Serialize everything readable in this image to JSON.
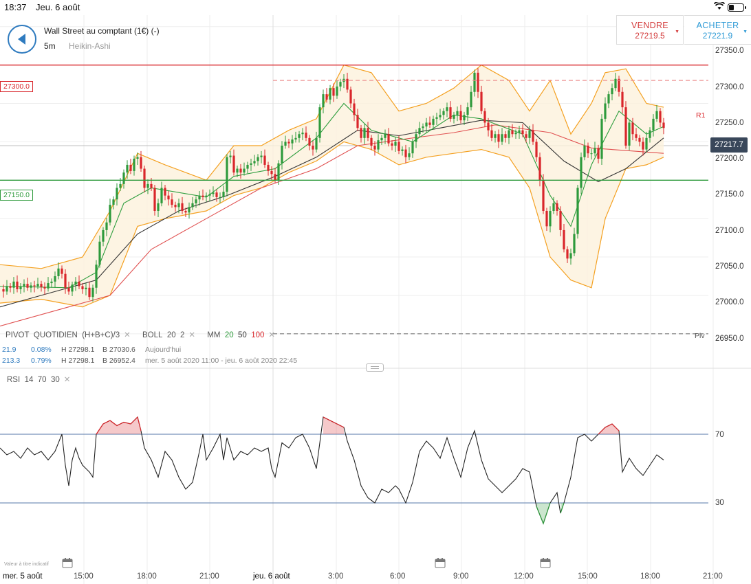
{
  "status_bar": {
    "time": "18:37",
    "date": "Jeu. 6 août"
  },
  "header": {
    "instrument": "Wall Street au comptant (1€) (-)",
    "timeframe": "5m",
    "chart_type": "Heikin-Ashi",
    "sell_label": "VENDRE",
    "sell_price": "27219.5",
    "buy_label": "ACHETER",
    "buy_price": "27221.9"
  },
  "price_axis": [
    "27350.0",
    "27300.0",
    "27250.0",
    "27200.0",
    "27150.0",
    "27100.0",
    "27050.0",
    "27000.0",
    "26950.0"
  ],
  "current_price": "27217.7",
  "levels": {
    "resistance_tag": "27300.0",
    "support_tag": "27150.0",
    "r1_label": "R1",
    "piv_label": "Piv"
  },
  "indicators": {
    "pivot": {
      "name": "PIVOT",
      "period": "QUOTIDIEN",
      "formula": "(H+B+C)/3"
    },
    "boll": {
      "name": "BOLL",
      "p1": "20",
      "p2": "2"
    },
    "mm": {
      "name": "MM",
      "v1": "20",
      "v2": "50",
      "v3": "100"
    }
  },
  "stats": {
    "row1": {
      "change": "21.9",
      "pct": "0.08%",
      "high": "H 27298.1",
      "low": "B 27030.6",
      "period": "Aujourd'hui"
    },
    "row2": {
      "change": "213.3",
      "pct": "0.79%",
      "high": "H 27298.1",
      "low": "B 26952.4",
      "period": "mer. 5 août 2020 11:00 - jeu. 6 août 2020 22:45"
    }
  },
  "rsi": {
    "name": "RSI",
    "period": "14",
    "upper": "70",
    "lower": "30",
    "upper_label": "70",
    "lower_label": "30"
  },
  "disclaimer": "Valeur à titre indicatif",
  "time_axis": [
    "mer. 5 août",
    "15:00",
    "18:00",
    "21:00",
    "jeu. 6 août",
    "3:00",
    "6:00",
    "9:00",
    "12:00",
    "15:00",
    "18:00",
    "21:00"
  ],
  "colors": {
    "up": "#2e9a3c",
    "down": "#d9262b",
    "bollinger": "#f4a020",
    "ma20": "#2f9e3f",
    "ma50": "#333333",
    "ma100": "#e05050",
    "resistance": "#d9262b",
    "support": "#2e9a3c",
    "rsi_line": "#222222",
    "rsi_bands": "#5577aa"
  },
  "chart_data": {
    "type": "line",
    "ylim": [
      26940,
      27365
    ],
    "levels": {
      "resistance": 27300,
      "support": 27150,
      "r1": 27280,
      "pivot": 26950
    },
    "close_series": [
      [
        0,
        27008
      ],
      [
        5,
        27005
      ],
      [
        10,
        27012
      ],
      [
        15,
        27010
      ],
      [
        20,
        27018
      ],
      [
        25,
        27008
      ],
      [
        30,
        27012
      ],
      [
        35,
        27015
      ],
      [
        40,
        27010
      ],
      [
        45,
        27013
      ],
      [
        50,
        27012
      ],
      [
        55,
        27015
      ],
      [
        60,
        27011
      ],
      [
        65,
        27009
      ],
      [
        70,
        27016
      ],
      [
        75,
        27018
      ],
      [
        80,
        27025
      ],
      [
        85,
        27035
      ],
      [
        90,
        27028
      ],
      [
        95,
        27010
      ],
      [
        100,
        27005
      ],
      [
        105,
        27014
      ],
      [
        110,
        27018
      ],
      [
        115,
        27012
      ],
      [
        120,
        27008
      ],
      [
        125,
        27010
      ],
      [
        130,
        26998
      ],
      [
        135,
        27010
      ],
      [
        140,
        27040
      ],
      [
        145,
        27070
      ],
      [
        150,
        27085
      ],
      [
        155,
        27095
      ],
      [
        160,
        27118
      ],
      [
        165,
        27125
      ],
      [
        170,
        27140
      ],
      [
        175,
        27145
      ],
      [
        180,
        27160
      ],
      [
        185,
        27170
      ],
      [
        190,
        27162
      ],
      [
        195,
        27178
      ],
      [
        200,
        27180
      ],
      [
        205,
        27165
      ],
      [
        210,
        27140
      ],
      [
        215,
        27145
      ],
      [
        220,
        27140
      ],
      [
        225,
        27110
      ],
      [
        230,
        27120
      ],
      [
        235,
        27140
      ],
      [
        240,
        27130
      ],
      [
        245,
        27125
      ],
      [
        250,
        27118
      ],
      [
        255,
        27115
      ],
      [
        260,
        27120
      ],
      [
        265,
        27110
      ],
      [
        270,
        27108
      ],
      [
        275,
        27115
      ],
      [
        280,
        27120
      ],
      [
        285,
        27125
      ],
      [
        290,
        27130
      ],
      [
        295,
        27128
      ],
      [
        300,
        27130
      ],
      [
        305,
        27132
      ],
      [
        310,
        27134
      ],
      [
        315,
        27128
      ],
      [
        320,
        27128
      ],
      [
        325,
        27135
      ],
      [
        330,
        27180
      ],
      [
        335,
        27182
      ],
      [
        340,
        27160
      ],
      [
        345,
        27165
      ],
      [
        350,
        27160
      ],
      [
        355,
        27165
      ],
      [
        360,
        27170
      ],
      [
        365,
        27172
      ],
      [
        370,
        27175
      ],
      [
        375,
        27180
      ],
      [
        380,
        27182
      ],
      [
        385,
        27170
      ],
      [
        390,
        27162
      ],
      [
        395,
        27158
      ],
      [
        400,
        27150
      ],
      [
        405,
        27172
      ],
      [
        410,
        27195
      ],
      [
        415,
        27200
      ],
      [
        420,
        27198
      ],
      [
        425,
        27203
      ],
      [
        430,
        27205
      ],
      [
        435,
        27210
      ],
      [
        440,
        27212
      ],
      [
        445,
        27205
      ],
      [
        450,
        27195
      ],
      [
        455,
        27190
      ],
      [
        460,
        27205
      ],
      [
        465,
        27245
      ],
      [
        470,
        27262
      ],
      [
        475,
        27255
      ],
      [
        480,
        27270
      ],
      [
        485,
        27260
      ],
      [
        490,
        27272
      ],
      [
        495,
        27278
      ],
      [
        500,
        27282
      ],
      [
        505,
        27268
      ],
      [
        510,
        27250
      ],
      [
        515,
        27235
      ],
      [
        520,
        27218
      ],
      [
        525,
        27205
      ],
      [
        530,
        27218
      ],
      [
        535,
        27205
      ],
      [
        540,
        27195
      ],
      [
        545,
        27190
      ],
      [
        550,
        27202
      ],
      [
        555,
        27205
      ],
      [
        560,
        27210
      ],
      [
        565,
        27198
      ],
      [
        570,
        27195
      ],
      [
        575,
        27200
      ],
      [
        580,
        27188
      ],
      [
        585,
        27190
      ],
      [
        590,
        27180
      ],
      [
        595,
        27185
      ],
      [
        600,
        27200
      ],
      [
        605,
        27210
      ],
      [
        610,
        27218
      ],
      [
        615,
        27220
      ],
      [
        620,
        27225
      ],
      [
        625,
        27222
      ],
      [
        630,
        27230
      ],
      [
        635,
        27232
      ],
      [
        640,
        27235
      ],
      [
        645,
        27240
      ],
      [
        650,
        27245
      ],
      [
        655,
        27230
      ],
      [
        660,
        27235
      ],
      [
        665,
        27240
      ],
      [
        670,
        27228
      ],
      [
        675,
        27235
      ],
      [
        680,
        27245
      ],
      [
        685,
        27265
      ],
      [
        690,
        27290
      ],
      [
        695,
        27265
      ],
      [
        700,
        27240
      ],
      [
        705,
        27225
      ],
      [
        710,
        27215
      ],
      [
        715,
        27205
      ],
      [
        720,
        27210
      ],
      [
        725,
        27200
      ],
      [
        730,
        27210
      ],
      [
        735,
        27205
      ],
      [
        740,
        27215
      ],
      [
        745,
        27210
      ],
      [
        750,
        27212
      ],
      [
        755,
        27215
      ],
      [
        760,
        27210
      ],
      [
        765,
        27205
      ],
      [
        770,
        27215
      ],
      [
        775,
        27200
      ],
      [
        780,
        27180
      ],
      [
        785,
        27150
      ],
      [
        790,
        27110
      ],
      [
        795,
        27090
      ],
      [
        800,
        27110
      ],
      [
        805,
        27120
      ],
      [
        810,
        27110
      ],
      [
        815,
        27085
      ],
      [
        820,
        27060
      ],
      [
        825,
        27048
      ],
      [
        830,
        27055
      ],
      [
        835,
        27080
      ],
      [
        840,
        27140
      ],
      [
        845,
        27180
      ],
      [
        850,
        27195
      ],
      [
        855,
        27185
      ],
      [
        860,
        27185
      ],
      [
        865,
        27192
      ],
      [
        870,
        27178
      ],
      [
        875,
        27230
      ],
      [
        880,
        27250
      ],
      [
        885,
        27262
      ],
      [
        890,
        27270
      ],
      [
        895,
        27282
      ],
      [
        900,
        27265
      ],
      [
        905,
        27245
      ],
      [
        910,
        27195
      ],
      [
        915,
        27225
      ],
      [
        920,
        27210
      ],
      [
        925,
        27205
      ],
      [
        930,
        27200
      ],
      [
        935,
        27190
      ],
      [
        940,
        27205
      ],
      [
        945,
        27215
      ],
      [
        950,
        27230
      ],
      [
        955,
        27240
      ],
      [
        960,
        27225
      ],
      [
        965,
        27218
      ]
    ],
    "rsi_ylim": [
      0,
      100
    ],
    "rsi_series": [
      [
        0,
        62
      ],
      [
        10,
        58
      ],
      [
        20,
        60
      ],
      [
        30,
        56
      ],
      [
        40,
        62
      ],
      [
        50,
        58
      ],
      [
        60,
        60
      ],
      [
        70,
        55
      ],
      [
        80,
        60
      ],
      [
        90,
        70
      ],
      [
        95,
        52
      ],
      [
        100,
        40
      ],
      [
        105,
        55
      ],
      [
        110,
        62
      ],
      [
        115,
        56
      ],
      [
        120,
        52
      ],
      [
        130,
        48
      ],
      [
        135,
        45
      ],
      [
        140,
        70
      ],
      [
        150,
        76
      ],
      [
        160,
        78
      ],
      [
        170,
        75
      ],
      [
        180,
        77
      ],
      [
        190,
        76
      ],
      [
        200,
        80
      ],
      [
        205,
        72
      ],
      [
        210,
        62
      ],
      [
        220,
        55
      ],
      [
        230,
        45
      ],
      [
        240,
        60
      ],
      [
        250,
        55
      ],
      [
        260,
        45
      ],
      [
        270,
        38
      ],
      [
        280,
        42
      ],
      [
        290,
        60
      ],
      [
        295,
        70
      ],
      [
        300,
        55
      ],
      [
        310,
        62
      ],
      [
        320,
        70
      ],
      [
        325,
        55
      ],
      [
        330,
        68
      ],
      [
        340,
        55
      ],
      [
        350,
        60
      ],
      [
        360,
        58
      ],
      [
        370,
        62
      ],
      [
        380,
        60
      ],
      [
        390,
        62
      ],
      [
        395,
        50
      ],
      [
        400,
        45
      ],
      [
        405,
        55
      ],
      [
        410,
        65
      ],
      [
        420,
        62
      ],
      [
        430,
        68
      ],
      [
        440,
        70
      ],
      [
        450,
        62
      ],
      [
        460,
        50
      ],
      [
        470,
        80
      ],
      [
        480,
        78
      ],
      [
        490,
        76
      ],
      [
        500,
        74
      ],
      [
        505,
        66
      ],
      [
        515,
        55
      ],
      [
        525,
        40
      ],
      [
        535,
        33
      ],
      [
        545,
        30
      ],
      [
        555,
        38
      ],
      [
        565,
        36
      ],
      [
        575,
        40
      ],
      [
        580,
        38
      ],
      [
        590,
        30
      ],
      [
        600,
        42
      ],
      [
        610,
        60
      ],
      [
        620,
        66
      ],
      [
        630,
        62
      ],
      [
        640,
        56
      ],
      [
        650,
        68
      ],
      [
        660,
        56
      ],
      [
        670,
        45
      ],
      [
        680,
        62
      ],
      [
        690,
        72
      ],
      [
        700,
        55
      ],
      [
        710,
        44
      ],
      [
        720,
        40
      ],
      [
        730,
        36
      ],
      [
        740,
        40
      ],
      [
        750,
        44
      ],
      [
        760,
        50
      ],
      [
        770,
        48
      ],
      [
        780,
        28
      ],
      [
        790,
        18
      ],
      [
        800,
        30
      ],
      [
        810,
        36
      ],
      [
        815,
        24
      ],
      [
        820,
        30
      ],
      [
        830,
        45
      ],
      [
        840,
        68
      ],
      [
        850,
        70
      ],
      [
        860,
        66
      ],
      [
        870,
        70
      ],
      [
        880,
        74
      ],
      [
        890,
        76
      ],
      [
        900,
        72
      ],
      [
        905,
        48
      ],
      [
        915,
        56
      ],
      [
        925,
        50
      ],
      [
        935,
        46
      ],
      [
        945,
        52
      ],
      [
        955,
        58
      ],
      [
        965,
        55
      ]
    ],
    "ma20": [
      [
        0,
        27012
      ],
      [
        100,
        27010
      ],
      [
        140,
        27030
      ],
      [
        180,
        27120
      ],
      [
        220,
        27140
      ],
      [
        300,
        27128
      ],
      [
        340,
        27155
      ],
      [
        400,
        27165
      ],
      [
        460,
        27205
      ],
      [
        500,
        27250
      ],
      [
        540,
        27215
      ],
      [
        600,
        27200
      ],
      [
        660,
        27235
      ],
      [
        700,
        27230
      ],
      [
        760,
        27210
      ],
      [
        800,
        27130
      ],
      [
        830,
        27090
      ],
      [
        860,
        27170
      ],
      [
        900,
        27240
      ],
      [
        940,
        27210
      ],
      [
        965,
        27220
      ]
    ],
    "ma50": [
      [
        0,
        26985
      ],
      [
        60,
        27000
      ],
      [
        140,
        27020
      ],
      [
        200,
        27080
      ],
      [
        260,
        27110
      ],
      [
        330,
        27130
      ],
      [
        400,
        27155
      ],
      [
        460,
        27180
      ],
      [
        520,
        27215
      ],
      [
        580,
        27208
      ],
      [
        640,
        27218
      ],
      [
        700,
        27228
      ],
      [
        760,
        27225
      ],
      [
        820,
        27175
      ],
      [
        870,
        27148
      ],
      [
        910,
        27165
      ],
      [
        965,
        27205
      ]
    ],
    "ma100": [
      [
        0,
        26960
      ],
      [
        100,
        26985
      ],
      [
        160,
        27000
      ],
      [
        220,
        27060
      ],
      [
        300,
        27100
      ],
      [
        380,
        27140
      ],
      [
        460,
        27165
      ],
      [
        520,
        27195
      ],
      [
        600,
        27205
      ],
      [
        660,
        27212
      ],
      [
        720,
        27222
      ],
      [
        800,
        27212
      ],
      [
        860,
        27192
      ],
      [
        920,
        27188
      ],
      [
        965,
        27185
      ]
    ],
    "boll_upper": [
      [
        0,
        27040
      ],
      [
        60,
        27035
      ],
      [
        120,
        27050
      ],
      [
        160,
        27110
      ],
      [
        200,
        27185
      ],
      [
        240,
        27170
      ],
      [
        300,
        27150
      ],
      [
        340,
        27195
      ],
      [
        380,
        27195
      ],
      [
        420,
        27215
      ],
      [
        460,
        27230
      ],
      [
        500,
        27300
      ],
      [
        540,
        27290
      ],
      [
        580,
        27240
      ],
      [
        620,
        27250
      ],
      [
        660,
        27270
      ],
      [
        700,
        27300
      ],
      [
        740,
        27280
      ],
      [
        770,
        27240
      ],
      [
        800,
        27280
      ],
      [
        830,
        27210
      ],
      [
        860,
        27250
      ],
      [
        880,
        27290
      ],
      [
        910,
        27295
      ],
      [
        940,
        27250
      ],
      [
        965,
        27245
      ]
    ],
    "boll_lower": [
      [
        0,
        26990
      ],
      [
        60,
        26995
      ],
      [
        120,
        26985
      ],
      [
        160,
        27000
      ],
      [
        200,
        27090
      ],
      [
        240,
        27100
      ],
      [
        300,
        27110
      ],
      [
        340,
        27130
      ],
      [
        380,
        27140
      ],
      [
        420,
        27160
      ],
      [
        460,
        27175
      ],
      [
        500,
        27200
      ],
      [
        540,
        27190
      ],
      [
        580,
        27170
      ],
      [
        620,
        27180
      ],
      [
        660,
        27185
      ],
      [
        700,
        27190
      ],
      [
        740,
        27180
      ],
      [
        770,
        27140
      ],
      [
        800,
        27050
      ],
      [
        830,
        27020
      ],
      [
        860,
        27010
      ],
      [
        880,
        27100
      ],
      [
        910,
        27165
      ],
      [
        940,
        27170
      ],
      [
        965,
        27180
      ]
    ]
  }
}
